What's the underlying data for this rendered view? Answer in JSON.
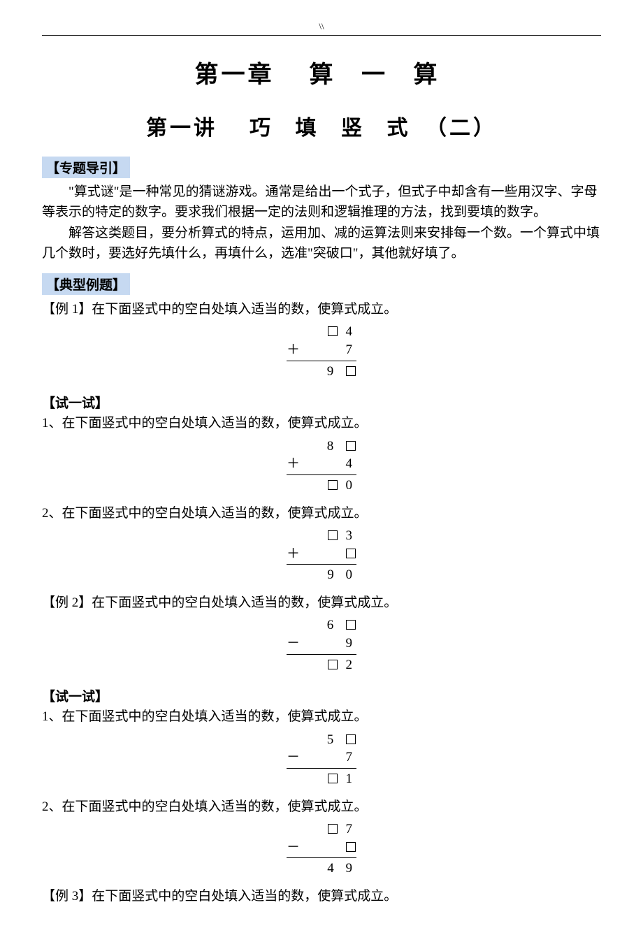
{
  "header_mark": "\\\\",
  "chapter": {
    "prefix": "第一章",
    "name": "算 一 算"
  },
  "section": {
    "prefix": "第一讲",
    "name": "巧 填 竖 式",
    "suffix": "（二）"
  },
  "tag_intro": "【专题导引】",
  "intro_p1": "\"算式谜\"是一种常见的猜谜游戏。通常是给出一个式子，但式子中却含有一些用汉字、字母等表示的特定的数字。要求我们根据一定的法则和逻辑推理的方法，找到要填的数字。",
  "intro_p2": "解答这类题目，要分析算式的特点，运用加、减的运算法则来安排每一个数。一个算式中填几个数时，要选好先填什么，再填什么，选准\"突破口\"，其他就好填了。",
  "tag_examples": "【典型例题】",
  "try_hdr": "【试一试】",
  "stem_generic": "在下面竖式中的空白处填入适当的数，使算式成立。",
  "ex1_label": "【例 1】",
  "t1_label": "1、",
  "t2_label": "2、",
  "ex2_label": "【例 2】",
  "ex3_label": "【例 3】",
  "calc_ex1": {
    "op": "＋",
    "r1_a": "□",
    "r1_b": "4",
    "r2_a": "",
    "r2_b": "7",
    "r3_a": "9",
    "r3_b": "□"
  },
  "calc_t1a": {
    "op": "＋",
    "r1_a": "8",
    "r1_b": "□",
    "r2_a": "",
    "r2_b": "4",
    "r3_a": "□",
    "r3_b": "0"
  },
  "calc_t1b": {
    "op": "＋",
    "r1_a": "□",
    "r1_b": "3",
    "r2_a": "",
    "r2_b": "□",
    "r3_a": "9",
    "r3_b": "0"
  },
  "calc_ex2": {
    "op": "－",
    "r1_a": "6",
    "r1_b": "□",
    "r2_a": "",
    "r2_b": "9",
    "r3_a": "□",
    "r3_b": "2"
  },
  "calc_t2a": {
    "op": "－",
    "r1_a": "5",
    "r1_b": "□",
    "r2_a": "",
    "r2_b": "7",
    "r3_a": "□",
    "r3_b": "1"
  },
  "calc_t2b": {
    "op": "－",
    "r1_a": "□",
    "r1_b": "7",
    "r2_a": "",
    "r2_b": "□",
    "r3_a": "4",
    "r3_b": "9"
  }
}
